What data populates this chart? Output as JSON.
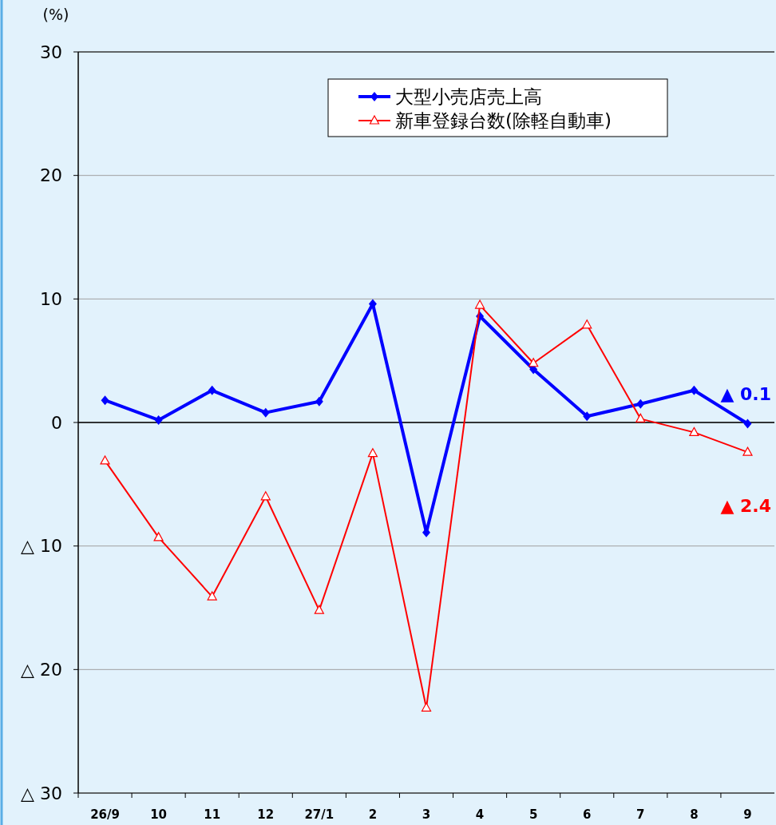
{
  "chart_data": {
    "type": "line",
    "ylabel": "(%)",
    "categories": [
      "26/9",
      "10",
      "11",
      "12",
      "27/1",
      "2",
      "3",
      "4",
      "5",
      "6",
      "7",
      "8",
      "9"
    ],
    "series": [
      {
        "name": "大型小売店売上高",
        "color": "#0000ff",
        "marker": "diamond",
        "values": [
          1.8,
          0.2,
          2.6,
          0.8,
          1.7,
          9.6,
          -8.9,
          8.6,
          4.3,
          0.5,
          1.5,
          2.6,
          -0.1
        ]
      },
      {
        "name": "新車登録台数(除軽自動車)",
        "color": "#ff0000",
        "marker": "triangle",
        "values": [
          -3.1,
          -9.3,
          -14.1,
          -6.0,
          -15.2,
          -2.5,
          -23.1,
          9.5,
          4.8,
          7.9,
          0.3,
          -0.8,
          -2.4
        ]
      }
    ],
    "ylim": [
      -30,
      30
    ],
    "yticks": [
      30,
      20,
      10,
      0,
      {
        "value": -10,
        "label": "△ 10"
      },
      {
        "value": -20,
        "label": "△ 20"
      },
      {
        "value": -30,
        "label": "△ 30"
      }
    ],
    "grid": "y",
    "legend": "top",
    "line_style": "solid",
    "ref_lines": [
      {
        "axis": "y",
        "value": 0,
        "color": "#000000"
      }
    ],
    "annotations": [
      {
        "text": "▲ 0.1",
        "x": "9",
        "y": -0.1
      },
      {
        "text": "▲ 2.4",
        "x": "9",
        "y": -2.4
      }
    ]
  }
}
